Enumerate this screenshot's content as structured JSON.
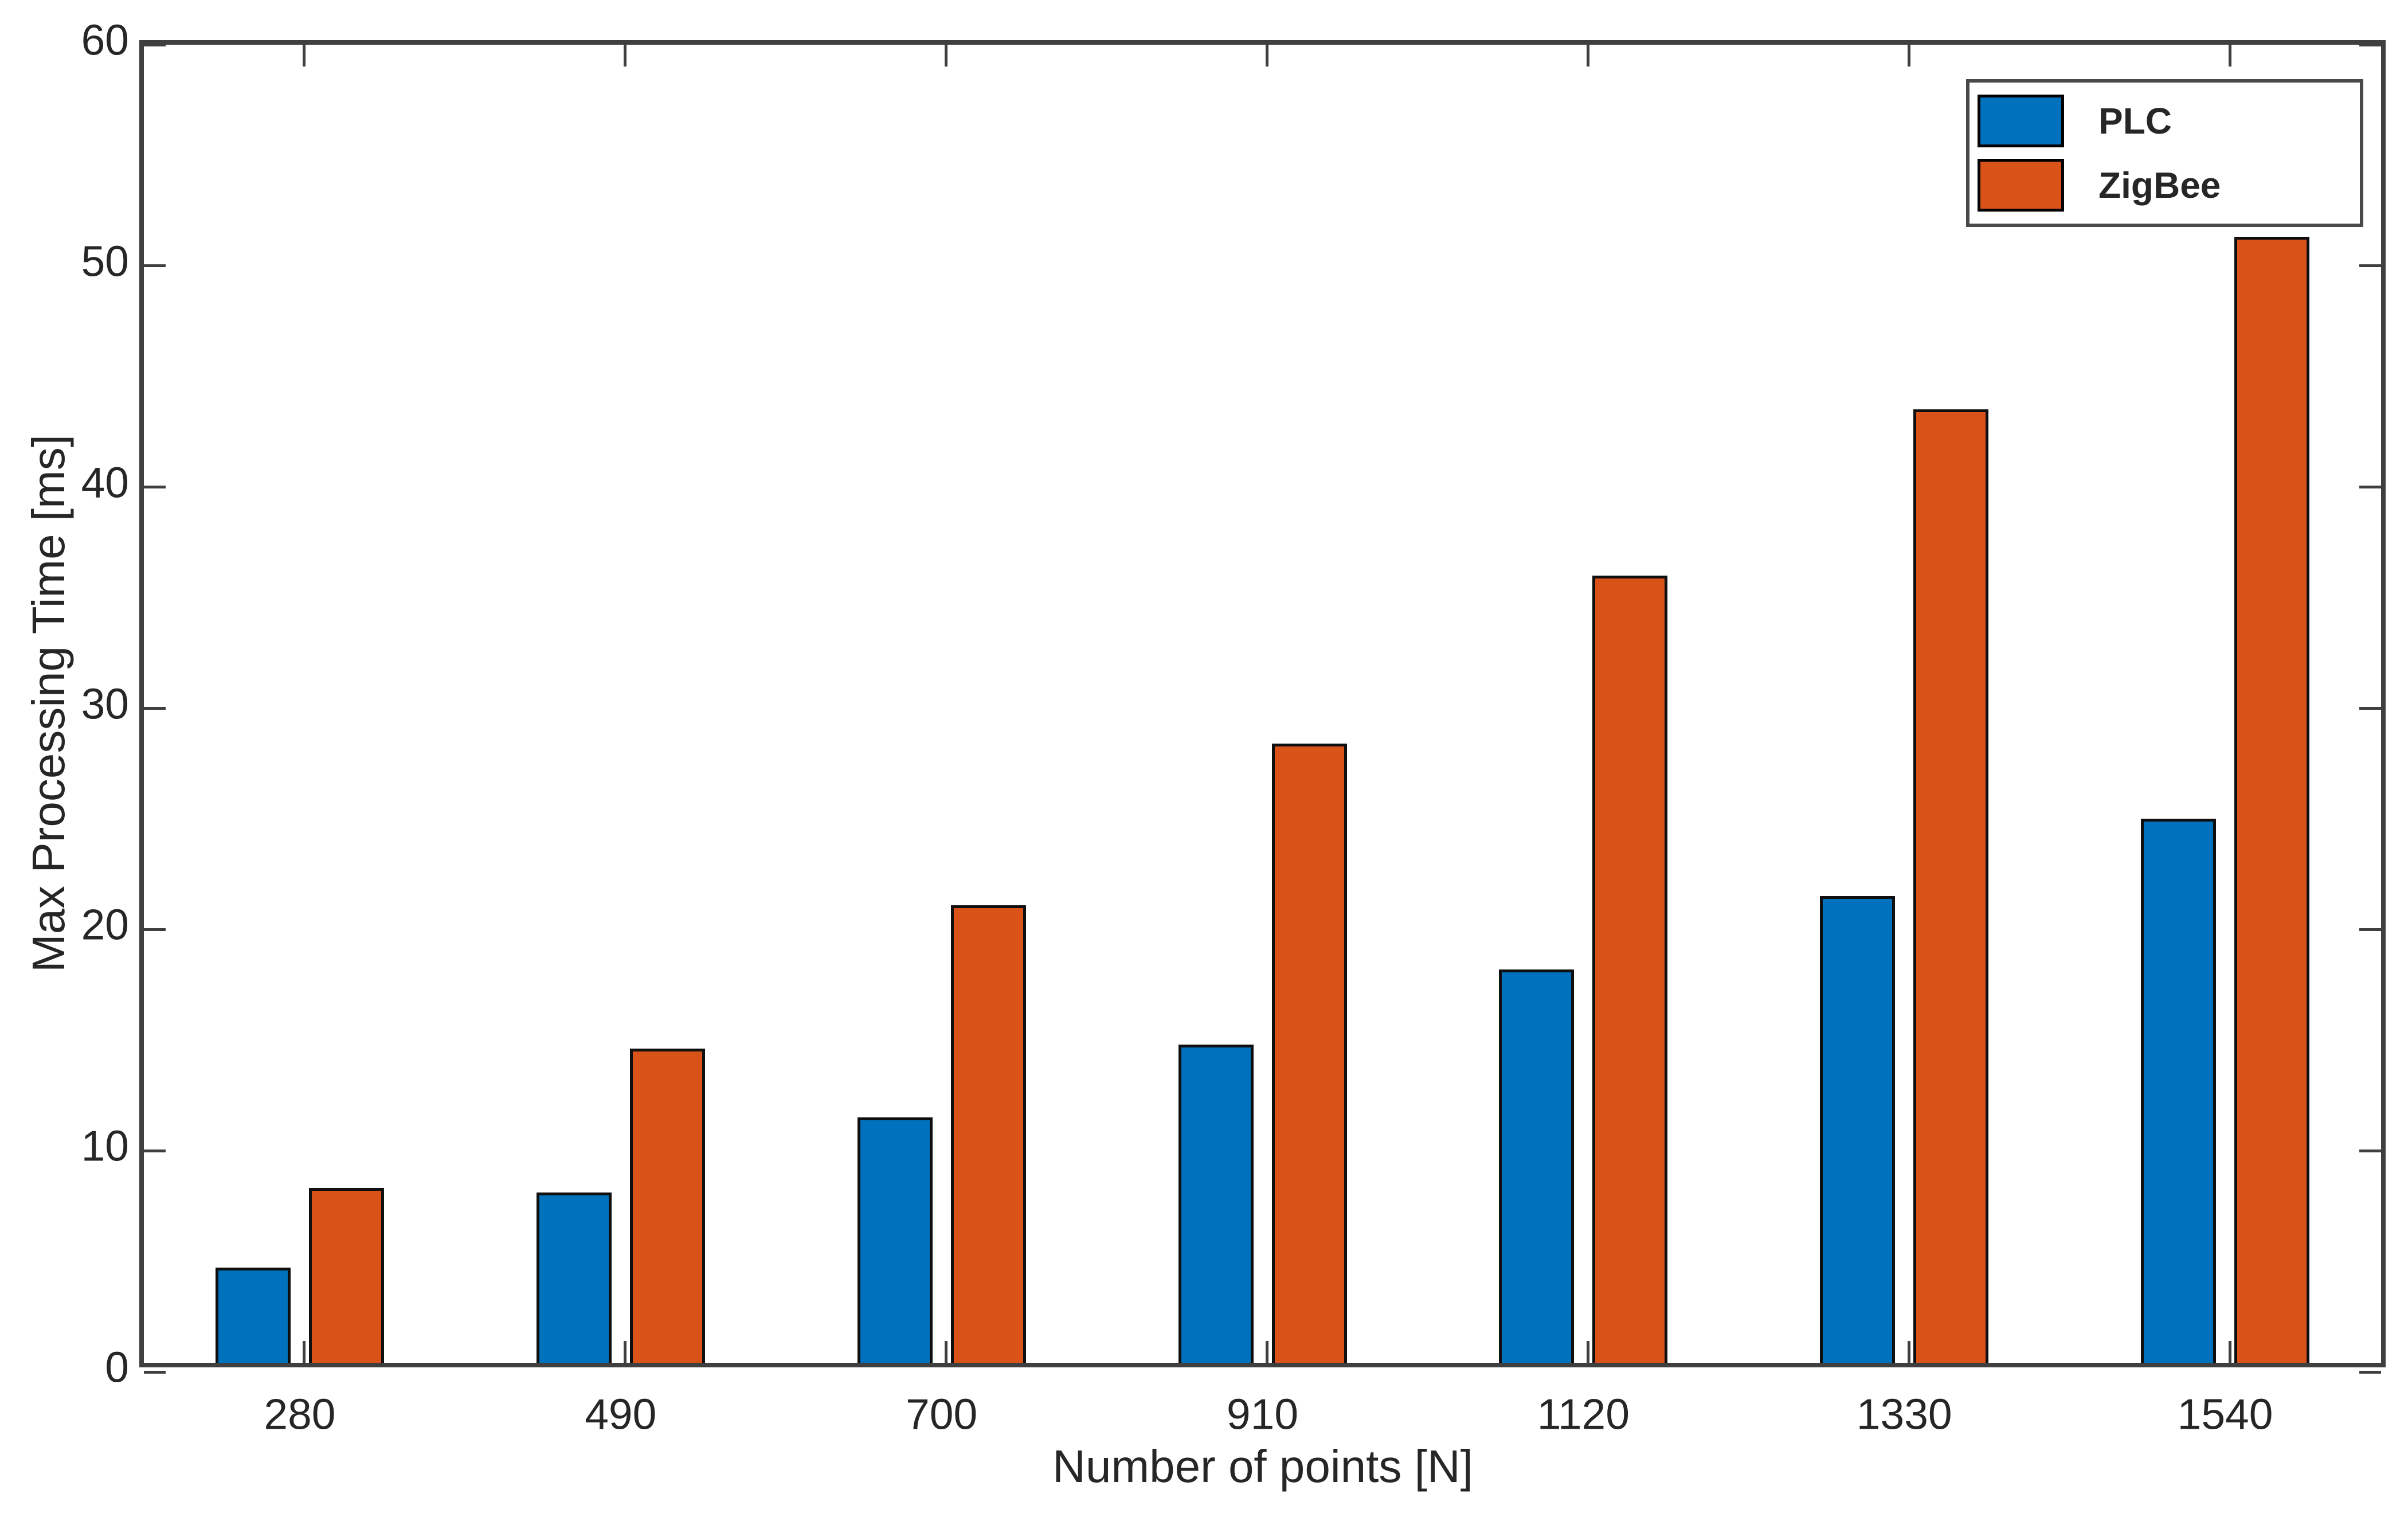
{
  "figure": {
    "xlabel": "Number of points [N]",
    "ylabel": "Max Processing Time [ms]"
  },
  "chart_data": {
    "type": "bar",
    "categories": [
      "280",
      "490",
      "700",
      "910",
      "1120",
      "1330",
      "1540"
    ],
    "series": [
      {
        "name": "PLC",
        "color": "#0072BD",
        "values": [
          4.5,
          7.9,
          11.3,
          14.6,
          18.0,
          21.3,
          24.8
        ]
      },
      {
        "name": "ZigBee",
        "color": "#D95319",
        "values": [
          8.1,
          14.4,
          20.9,
          28.2,
          35.8,
          43.3,
          51.1
        ]
      }
    ],
    "title": "",
    "xlabel": "Number of points [N]",
    "ylabel": "Max Processing Time [ms]",
    "ylim": [
      0,
      60
    ],
    "yticks": [
      0,
      10,
      20,
      30,
      40,
      50,
      60
    ],
    "grid": false,
    "legend_position": "top-right",
    "bar_edge_color": "#0f0f0f",
    "axis_color": "#3f3f3f"
  }
}
